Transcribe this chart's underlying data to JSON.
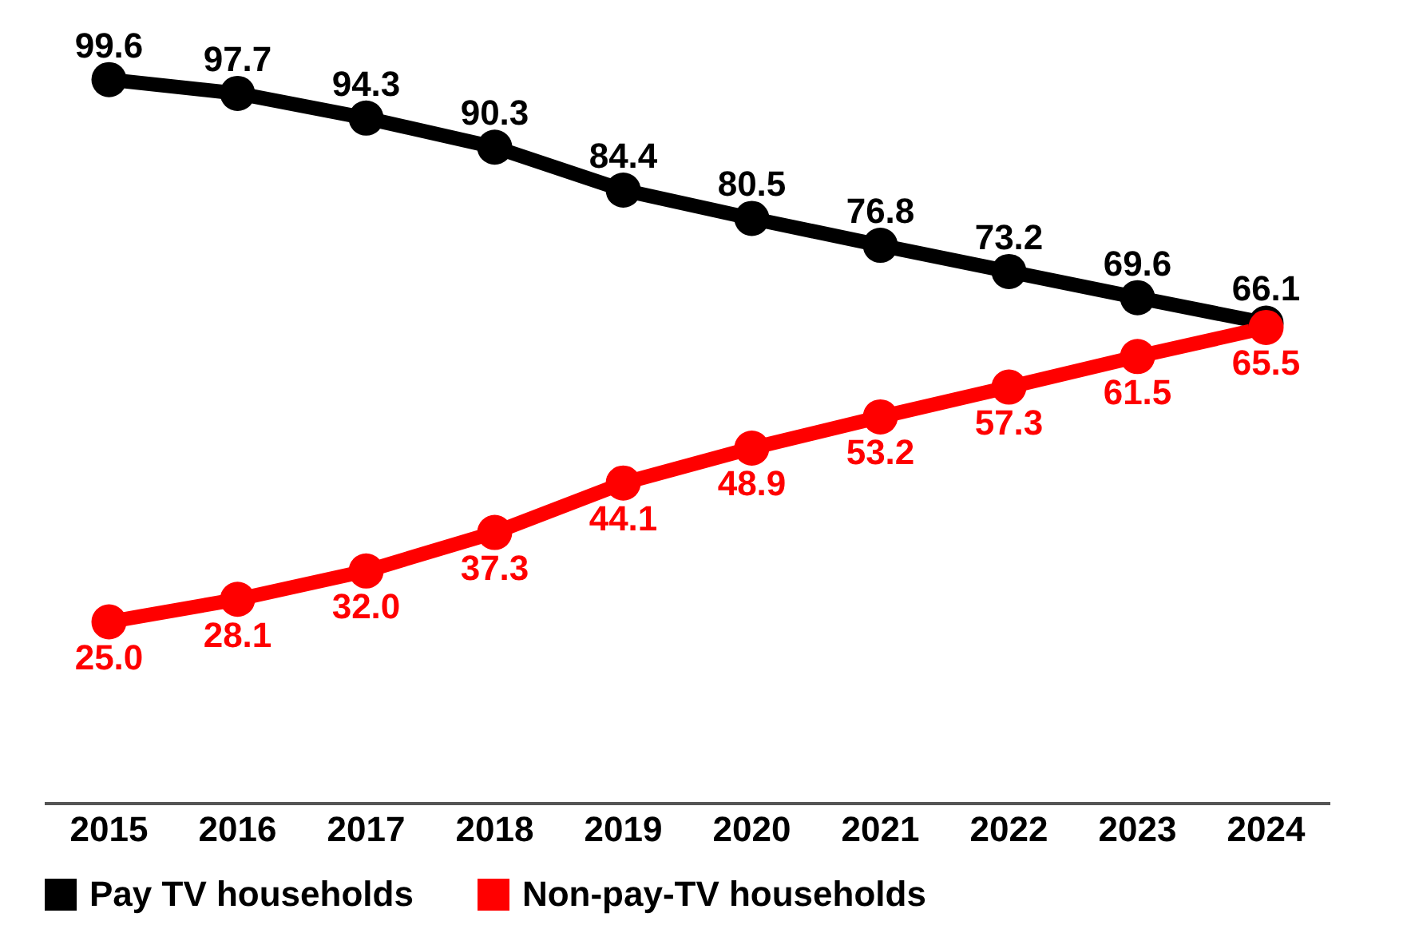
{
  "chart_data": {
    "type": "line",
    "categories": [
      "2015",
      "2016",
      "2017",
      "2018",
      "2019",
      "2020",
      "2021",
      "2022",
      "2023",
      "2024"
    ],
    "series": [
      {
        "name": "Pay TV households",
        "color": "#000000",
        "values": [
          99.6,
          97.7,
          94.3,
          90.3,
          84.4,
          80.5,
          76.8,
          73.2,
          69.6,
          66.1
        ],
        "value_labels": [
          "99.6",
          "97.7",
          "94.3",
          "90.3",
          "84.4",
          "80.5",
          "76.8",
          "73.2",
          "69.6",
          "66.1"
        ]
      },
      {
        "name": "Non-pay-TV households",
        "color": "#ff0000",
        "values": [
          25.0,
          28.1,
          32.0,
          37.3,
          44.1,
          48.9,
          53.2,
          57.3,
          61.5,
          65.5
        ],
        "value_labels": [
          "25.0",
          "28.1",
          "32.0",
          "37.3",
          "44.1",
          "48.9",
          "53.2",
          "57.3",
          "61.5",
          "65.5"
        ]
      }
    ],
    "marker": "circle",
    "line_style": "solid",
    "grid": false,
    "legend": "bottom left"
  }
}
